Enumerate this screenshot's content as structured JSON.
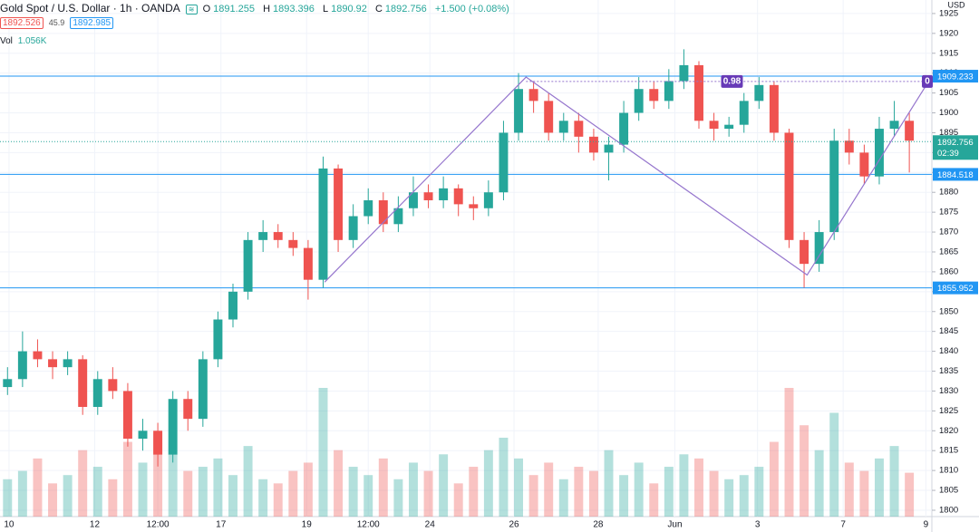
{
  "legend": {
    "symbol": "Gold Spot / U.S. Dollar · 1h · OANDA",
    "ohlc": [
      {
        "key": "O",
        "value": 1891.255
      },
      {
        "key": "H",
        "value": 1893.396
      },
      {
        "key": "L",
        "value": 1890.92
      },
      {
        "key": "C",
        "value": 1892.756
      }
    ],
    "change": "+1.500 (+0.08%)",
    "bid": 1892.526,
    "spread": 45.9,
    "ask": 1892.985,
    "vol_label": "Vol",
    "vol_value": "1.056K"
  },
  "chart_data": {
    "type": "candlestick",
    "currency": "USD",
    "xlim": [
      -0.5,
      61.5
    ],
    "xticks": [
      {
        "value": 0.1,
        "label": "10"
      },
      {
        "value": 5.8,
        "label": "12"
      },
      {
        "value": 10,
        "label": "12:00"
      },
      {
        "value": 14.2,
        "label": "17"
      },
      {
        "value": 19.9,
        "label": "19"
      },
      {
        "value": 24,
        "label": "12:00"
      },
      {
        "value": 28.1,
        "label": "24"
      },
      {
        "value": 33.7,
        "label": "26"
      },
      {
        "value": 39.3,
        "label": "28"
      },
      {
        "value": 44.4,
        "label": "Jun"
      },
      {
        "value": 49.9,
        "label": "3"
      },
      {
        "value": 55.6,
        "label": "7"
      },
      {
        "value": 61.1,
        "label": "9"
      }
    ],
    "ylim": [
      1798.4,
      1928.4
    ],
    "yticks": [
      1800,
      1805,
      1810,
      1815,
      1820,
      1825,
      1830,
      1835,
      1840,
      1845,
      1850,
      1855,
      1860,
      1865,
      1870,
      1875,
      1880,
      1885,
      1890,
      1895,
      1900,
      1905,
      1910,
      1915,
      1920,
      1925
    ],
    "up_color": "#26a69a",
    "down_color": "#ef5350",
    "open": [
      1831,
      1833,
      1840,
      1838,
      1836,
      1838,
      1826,
      1833,
      1830,
      1818,
      1820,
      1814,
      1828,
      1823,
      1838,
      1848,
      1855,
      1868,
      1870,
      1868,
      1866,
      1858,
      1886,
      1868,
      1874,
      1878,
      1872,
      1876,
      1880,
      1878,
      1881,
      1877,
      1876,
      1880,
      1895,
      1906,
      1903,
      1895,
      1898,
      1894,
      1890,
      1892,
      1900,
      1906,
      1903,
      1908,
      1912,
      1898,
      1896,
      1897,
      1903,
      1907,
      1895,
      1868,
      1862,
      1870,
      1893,
      1890,
      1884,
      1896,
      1898
    ],
    "high": [
      1836,
      1845,
      1843,
      1840,
      1840,
      1839,
      1835,
      1836,
      1832,
      1823,
      1822,
      1830,
      1830,
      1840,
      1850,
      1857,
      1870,
      1873,
      1872,
      1870,
      1868,
      1889,
      1887,
      1877,
      1881,
      1880,
      1879,
      1884,
      1882,
      1884,
      1882,
      1879,
      1883,
      1898,
      1910,
      1908,
      1905,
      1900,
      1900,
      1896,
      1894,
      1903,
      1909,
      1908,
      1911,
      1916,
      1913,
      1900,
      1899,
      1905,
      1909,
      1908,
      1896,
      1870,
      1873,
      1896,
      1896,
      1892,
      1899,
      1903,
      1900
    ],
    "low": [
      1829,
      1831,
      1836,
      1833,
      1834,
      1824,
      1824,
      1828,
      1816,
      1815,
      1811,
      1812,
      1820,
      1821,
      1836,
      1846,
      1853,
      1865,
      1866,
      1864,
      1853,
      1856,
      1865,
      1866,
      1872,
      1870,
      1870,
      1874,
      1876,
      1876,
      1874,
      1873,
      1874,
      1878,
      1893,
      1900,
      1893,
      1893,
      1890,
      1888,
      1883,
      1890,
      1898,
      1901,
      1901,
      1906,
      1896,
      1893,
      1894,
      1895,
      1901,
      1893,
      1866,
      1856,
      1860,
      1868,
      1887,
      1882,
      1882,
      1894,
      1885
    ],
    "close": [
      1833,
      1840,
      1838,
      1836,
      1838,
      1826,
      1833,
      1830,
      1818,
      1820,
      1814,
      1828,
      1823,
      1838,
      1848,
      1855,
      1868,
      1870,
      1868,
      1866,
      1858,
      1886,
      1868,
      1874,
      1878,
      1872,
      1876,
      1880,
      1878,
      1881,
      1877,
      1876,
      1880,
      1895,
      1906,
      1903,
      1895,
      1898,
      1894,
      1890,
      1892,
      1900,
      1906,
      1903,
      1908,
      1912,
      1898,
      1896,
      1897,
      1903,
      1907,
      1895,
      1868,
      1862,
      1870,
      1893,
      1890,
      1884,
      1896,
      1898,
      1893
    ],
    "volume": [
      0.9,
      1.1,
      1.4,
      0.8,
      1.0,
      1.6,
      1.2,
      0.9,
      1.8,
      1.3,
      2.0,
      1.5,
      1.1,
      1.2,
      1.4,
      1.0,
      1.7,
      0.9,
      0.8,
      1.1,
      1.3,
      3.1,
      1.6,
      1.2,
      1.0,
      1.4,
      0.9,
      1.3,
      1.1,
      1.5,
      0.8,
      1.2,
      1.6,
      1.9,
      1.4,
      1.0,
      1.3,
      0.9,
      1.2,
      1.1,
      1.6,
      1.0,
      1.3,
      0.8,
      1.2,
      1.5,
      1.4,
      1.1,
      0.9,
      1.0,
      1.2,
      1.8,
      3.1,
      2.2,
      1.6,
      2.5,
      1.3,
      1.1,
      1.4,
      1.7,
      1.056
    ],
    "hlines": [
      1909.233,
      1884.518,
      1855.952
    ],
    "hline_color": "#2196f3",
    "last_price": 1892.756,
    "countdown": "02:39",
    "pattern": {
      "x": [
        21.1,
        34.5,
        53.2,
        61.2
      ],
      "y": [
        1857.4,
        1909.0,
        1859.2,
        1907.4
      ],
      "color": "#9575cd"
    },
    "fib": {
      "price": 1907.9,
      "levels": [
        0.98,
        0
      ]
    },
    "grid": true
  }
}
